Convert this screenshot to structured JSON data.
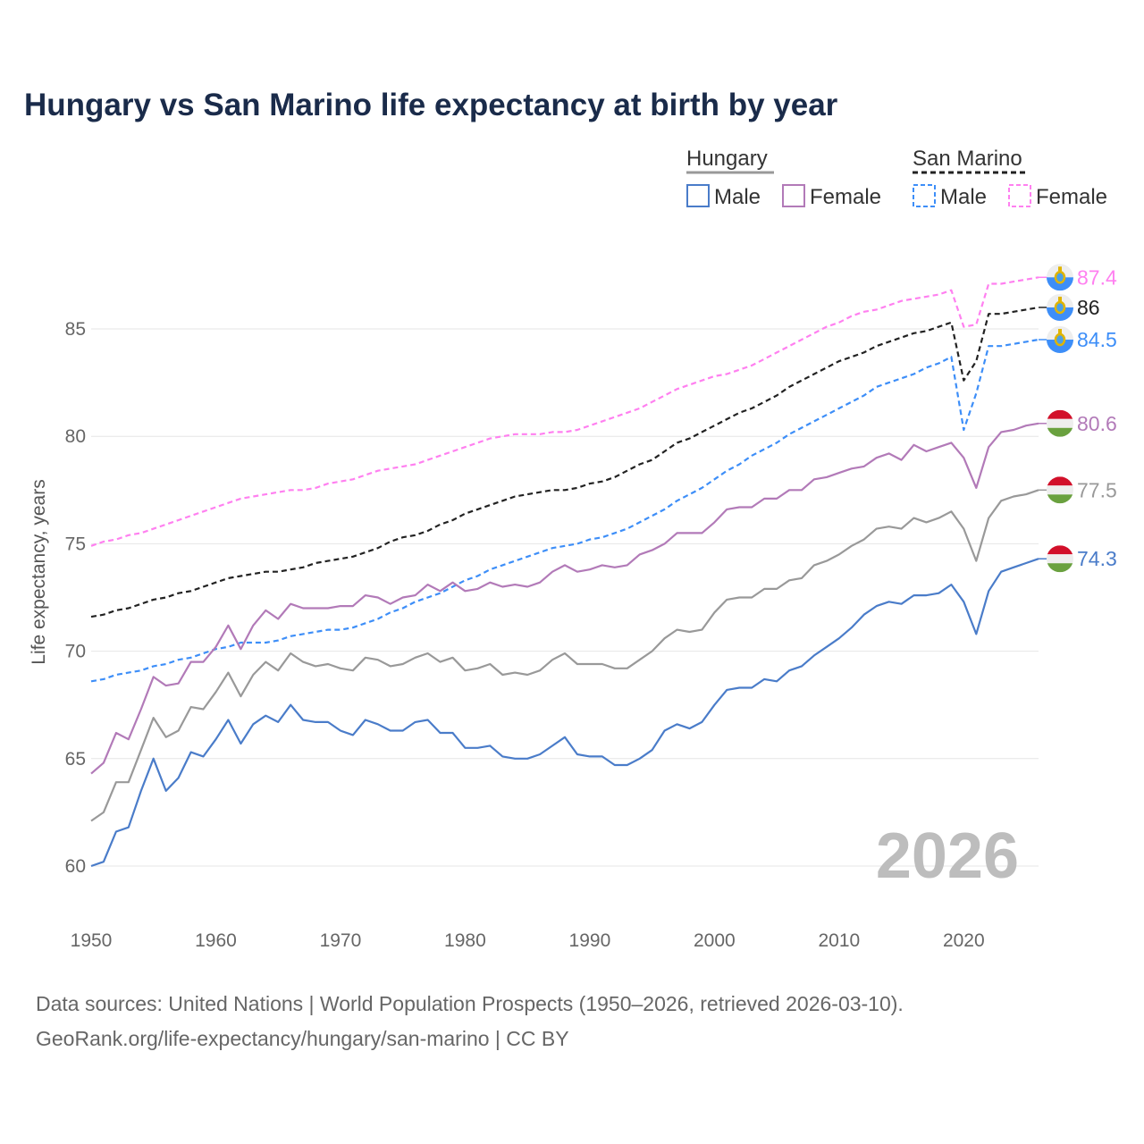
{
  "chart_data": {
    "type": "line",
    "title": "Hungary vs San Marino life expectancy at birth by year",
    "xlabel": "",
    "ylabel": "Life expectancy, years",
    "xlim": [
      1950,
      2026
    ],
    "ylim": [
      58,
      89
    ],
    "x_ticks": [
      1950,
      1960,
      1970,
      1980,
      1990,
      2000,
      2010,
      2020
    ],
    "y_ticks": [
      60,
      65,
      70,
      75,
      80,
      85
    ],
    "grid": true,
    "legend_placement": "top-right",
    "legend": {
      "groups": [
        {
          "name": "Hungary",
          "items": [
            "Male",
            "Female"
          ]
        },
        {
          "name": "San Marino",
          "items": [
            "Male",
            "Female"
          ]
        }
      ]
    },
    "year_watermark": "2026",
    "x_start": 1950,
    "series": [
      {
        "name": "San Marino Female",
        "country": "San Marino",
        "color": "#ff80f0",
        "dashed": true,
        "end_label": "87.4",
        "values": [
          74.9,
          75.1,
          75.2,
          75.4,
          75.5,
          75.7,
          75.9,
          76.1,
          76.3,
          76.5,
          76.7,
          76.9,
          77.1,
          77.2,
          77.3,
          77.4,
          77.5,
          77.5,
          77.6,
          77.8,
          77.9,
          78.0,
          78.2,
          78.4,
          78.5,
          78.6,
          78.7,
          78.9,
          79.1,
          79.3,
          79.5,
          79.7,
          79.9,
          80.0,
          80.1,
          80.1,
          80.1,
          80.2,
          80.2,
          80.3,
          80.5,
          80.7,
          80.9,
          81.1,
          81.3,
          81.6,
          81.9,
          82.2,
          82.4,
          82.6,
          82.8,
          82.9,
          83.1,
          83.3,
          83.6,
          83.9,
          84.2,
          84.5,
          84.8,
          85.1,
          85.3,
          85.6,
          85.8,
          85.9,
          86.1,
          86.3,
          86.4,
          86.5,
          86.6,
          86.8,
          85.1,
          85.2,
          87.1,
          87.1,
          87.2,
          87.3,
          87.4
        ]
      },
      {
        "name": "San Marino Total",
        "country": "San Marino",
        "color": "#222222",
        "dashed": true,
        "end_label": "86",
        "values": [
          71.6,
          71.7,
          71.9,
          72.0,
          72.2,
          72.4,
          72.5,
          72.7,
          72.8,
          73.0,
          73.2,
          73.4,
          73.5,
          73.6,
          73.7,
          73.7,
          73.8,
          73.9,
          74.1,
          74.2,
          74.3,
          74.4,
          74.6,
          74.8,
          75.1,
          75.3,
          75.4,
          75.6,
          75.9,
          76.1,
          76.4,
          76.6,
          76.8,
          77.0,
          77.2,
          77.3,
          77.4,
          77.5,
          77.5,
          77.6,
          77.8,
          77.9,
          78.1,
          78.4,
          78.7,
          78.9,
          79.3,
          79.7,
          79.9,
          80.2,
          80.5,
          80.8,
          81.1,
          81.3,
          81.6,
          81.9,
          82.3,
          82.6,
          82.9,
          83.2,
          83.5,
          83.7,
          83.9,
          84.2,
          84.4,
          84.6,
          84.8,
          84.9,
          85.1,
          85.3,
          82.6,
          83.5,
          85.7,
          85.7,
          85.8,
          85.9,
          86.0
        ]
      },
      {
        "name": "San Marino Male",
        "country": "San Marino",
        "color": "#3d8ef8",
        "dashed": true,
        "end_label": "84.5",
        "values": [
          68.6,
          68.7,
          68.9,
          69.0,
          69.1,
          69.3,
          69.4,
          69.6,
          69.7,
          69.9,
          70.1,
          70.2,
          70.4,
          70.4,
          70.4,
          70.5,
          70.7,
          70.8,
          70.9,
          71.0,
          71.0,
          71.1,
          71.3,
          71.5,
          71.8,
          72.0,
          72.3,
          72.5,
          72.7,
          73.0,
          73.3,
          73.5,
          73.8,
          74.0,
          74.2,
          74.4,
          74.6,
          74.8,
          74.9,
          75.0,
          75.2,
          75.3,
          75.5,
          75.7,
          76.0,
          76.3,
          76.6,
          77.0,
          77.3,
          77.6,
          78.0,
          78.4,
          78.7,
          79.1,
          79.4,
          79.7,
          80.1,
          80.4,
          80.7,
          81.0,
          81.3,
          81.6,
          81.9,
          82.3,
          82.5,
          82.7,
          82.9,
          83.2,
          83.4,
          83.7,
          80.3,
          82.0,
          84.2,
          84.2,
          84.3,
          84.4,
          84.5
        ]
      },
      {
        "name": "Hungary Female",
        "country": "Hungary",
        "color": "#b27ab8",
        "dashed": false,
        "end_label": "80.6",
        "values": [
          64.3,
          64.8,
          66.2,
          65.9,
          67.3,
          68.8,
          68.4,
          68.5,
          69.5,
          69.5,
          70.2,
          71.2,
          70.1,
          71.2,
          71.9,
          71.5,
          72.2,
          72.0,
          72.0,
          72.0,
          72.1,
          72.1,
          72.6,
          72.5,
          72.2,
          72.5,
          72.6,
          73.1,
          72.8,
          73.2,
          72.8,
          72.9,
          73.2,
          73.0,
          73.1,
          73.0,
          73.2,
          73.7,
          74.0,
          73.7,
          73.8,
          74.0,
          73.9,
          74.0,
          74.5,
          74.7,
          75.0,
          75.5,
          75.5,
          75.5,
          76.0,
          76.6,
          76.7,
          76.7,
          77.1,
          77.1,
          77.5,
          77.5,
          78.0,
          78.1,
          78.3,
          78.5,
          78.6,
          79.0,
          79.2,
          78.9,
          79.6,
          79.3,
          79.5,
          79.7,
          79.0,
          77.6,
          79.5,
          80.2,
          80.3,
          80.5,
          80.6
        ]
      },
      {
        "name": "Hungary Total",
        "country": "Hungary",
        "color": "#999999",
        "dashed": false,
        "end_label": "77.5",
        "values": [
          62.1,
          62.5,
          63.9,
          63.9,
          65.4,
          66.9,
          66.0,
          66.3,
          67.4,
          67.3,
          68.1,
          69.0,
          67.9,
          68.9,
          69.5,
          69.1,
          69.9,
          69.5,
          69.3,
          69.4,
          69.2,
          69.1,
          69.7,
          69.6,
          69.3,
          69.4,
          69.7,
          69.9,
          69.5,
          69.7,
          69.1,
          69.2,
          69.4,
          68.9,
          69.0,
          68.9,
          69.1,
          69.6,
          69.9,
          69.4,
          69.4,
          69.4,
          69.2,
          69.2,
          69.6,
          70.0,
          70.6,
          71.0,
          70.9,
          71.0,
          71.8,
          72.4,
          72.5,
          72.5,
          72.9,
          72.9,
          73.3,
          73.4,
          74.0,
          74.2,
          74.5,
          74.9,
          75.2,
          75.7,
          75.8,
          75.7,
          76.2,
          76.0,
          76.2,
          76.5,
          75.7,
          74.2,
          76.2,
          77.0,
          77.2,
          77.3,
          77.5
        ]
      },
      {
        "name": "Hungary Male",
        "country": "Hungary",
        "color": "#4a7cc9",
        "dashed": false,
        "end_label": "74.3",
        "values": [
          60.0,
          60.2,
          61.6,
          61.8,
          63.5,
          65.0,
          63.5,
          64.1,
          65.3,
          65.1,
          65.9,
          66.8,
          65.7,
          66.6,
          67.0,
          66.7,
          67.5,
          66.8,
          66.7,
          66.7,
          66.3,
          66.1,
          66.8,
          66.6,
          66.3,
          66.3,
          66.7,
          66.8,
          66.2,
          66.2,
          65.5,
          65.5,
          65.6,
          65.1,
          65.0,
          65.0,
          65.2,
          65.6,
          66.0,
          65.2,
          65.1,
          65.1,
          64.7,
          64.7,
          65.0,
          65.4,
          66.3,
          66.6,
          66.4,
          66.7,
          67.5,
          68.2,
          68.3,
          68.3,
          68.7,
          68.6,
          69.1,
          69.3,
          69.8,
          70.2,
          70.6,
          71.1,
          71.7,
          72.1,
          72.3,
          72.2,
          72.6,
          72.6,
          72.7,
          73.1,
          72.3,
          70.8,
          72.8,
          73.7,
          73.9,
          74.1,
          74.3
        ]
      }
    ],
    "source_lines": [
      "Data sources: United Nations | World Population Prospects (1950–2026, retrieved 2026-03-10).",
      "GeoRank.org/life-expectancy/hungary/san-marino | CC BY"
    ]
  },
  "colors": {
    "hu_male": "#4a7cc9",
    "hu_female": "#b27ab8",
    "sm_male": "#3d8ef8",
    "sm_female": "#ff80f0",
    "hungary": "#999999",
    "san_marino": "#222222"
  }
}
